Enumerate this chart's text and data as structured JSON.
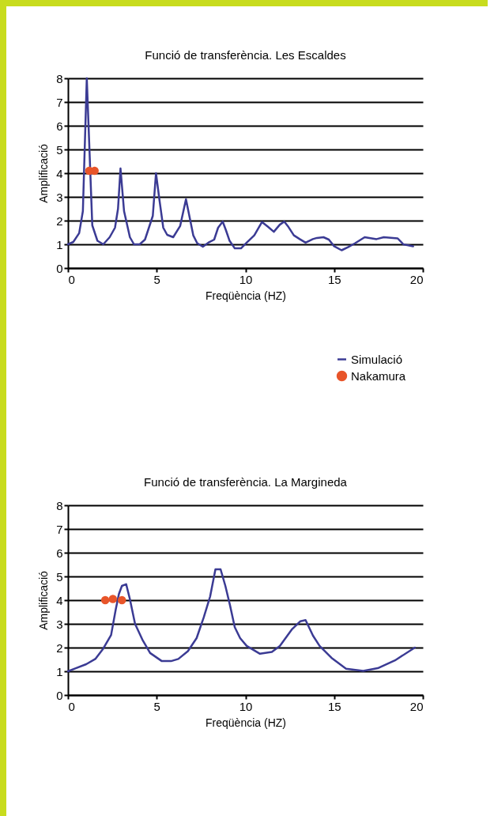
{
  "chart_data": [
    {
      "type": "line",
      "title": "Funció de transferència. Les Escaldes",
      "xlabel": "Freqüència (HZ)",
      "ylabel": "Amplificació",
      "xlim": [
        0,
        20
      ],
      "ylim": [
        0,
        8
      ],
      "xticks": [
        0,
        5,
        10,
        15,
        20
      ],
      "yticks": [
        0,
        1,
        2,
        3,
        4,
        5,
        6,
        7,
        8
      ],
      "grid": "y",
      "legend": "bottom right",
      "series": [
        {
          "name": "Simulació",
          "type": "line",
          "color": "#3b3b94",
          "x": [
            0,
            0.3,
            0.63,
            0.84,
            1.06,
            1.37,
            1.66,
            1.99,
            2.35,
            2.65,
            2.82,
            2.96,
            3.16,
            3.49,
            3.72,
            4.04,
            4.34,
            4.56,
            4.78,
            4.96,
            5.15,
            5.37,
            5.59,
            5.93,
            6.32,
            6.65,
            6.88,
            7.06,
            7.28,
            7.6,
            7.91,
            8.24,
            8.46,
            8.72,
            8.9,
            9.1,
            9.4,
            9.75,
            10.07,
            10.5,
            10.93,
            11.27,
            11.6,
            11.94,
            12.19,
            12.39,
            12.73,
            13.06,
            13.39,
            13.8,
            14.03,
            14.4,
            14.7,
            15.0,
            15.42,
            15.78,
            16.19,
            16.72,
            17.39,
            17.8,
            18.58,
            18.9,
            19.45
          ],
          "values": [
            1.0,
            1.1,
            1.47,
            2.4,
            8.0,
            1.8,
            1.15,
            1.0,
            1.3,
            1.7,
            2.5,
            4.2,
            2.4,
            1.3,
            1.0,
            1.0,
            1.2,
            1.7,
            2.2,
            4.0,
            2.9,
            1.7,
            1.4,
            1.3,
            1.77,
            2.9,
            2.05,
            1.38,
            1.05,
            0.9,
            1.07,
            1.2,
            1.7,
            1.96,
            1.6,
            1.16,
            0.83,
            0.83,
            1.07,
            1.38,
            1.94,
            1.74,
            1.53,
            1.83,
            1.96,
            1.77,
            1.38,
            1.22,
            1.07,
            1.22,
            1.27,
            1.3,
            1.2,
            0.92,
            0.75,
            0.88,
            1.05,
            1.3,
            1.22,
            1.3,
            1.25,
            1.0,
            0.92
          ]
        },
        {
          "name": "Nakamura",
          "type": "scatter",
          "color": "#e8552a",
          "marker": "circle",
          "x": [
            1.2,
            1.5
          ],
          "values": [
            4.1,
            4.1
          ]
        }
      ]
    },
    {
      "type": "line",
      "title": "Funció de transferència. La Margineda",
      "xlabel": "Freqüència (HZ)",
      "ylabel": "Amplificació",
      "xlim": [
        0,
        20
      ],
      "ylim": [
        0,
        8
      ],
      "xticks": [
        0,
        5,
        10,
        15,
        20
      ],
      "yticks": [
        0,
        1,
        2,
        3,
        4,
        5,
        6,
        7,
        8
      ],
      "grid": "y",
      "series": [
        {
          "type": "line",
          "color": "#3b3b94",
          "x": [
            0,
            0.44,
            1.03,
            1.54,
            1.99,
            2.43,
            2.69,
            2.87,
            3.04,
            3.28,
            3.49,
            3.78,
            4.19,
            4.63,
            5.29,
            5.81,
            6.22,
            6.76,
            7.25,
            7.65,
            8.01,
            8.31,
            8.6,
            8.87,
            9.12,
            9.4,
            9.7,
            10.07,
            10.82,
            11.49,
            11.94,
            12.61,
            13.1,
            13.39,
            13.81,
            14.18,
            14.85,
            15.67,
            16.64,
            17.46,
            18.43,
            19.55
          ],
          "values": [
            1.0,
            1.13,
            1.3,
            1.52,
            1.96,
            2.53,
            3.6,
            4.26,
            4.6,
            4.67,
            4.04,
            3.0,
            2.34,
            1.77,
            1.43,
            1.43,
            1.52,
            1.85,
            2.4,
            3.27,
            4.15,
            5.3,
            5.3,
            4.6,
            3.82,
            2.86,
            2.4,
            2.07,
            1.74,
            1.82,
            2.07,
            2.76,
            3.11,
            3.16,
            2.5,
            2.07,
            1.57,
            1.11,
            1.02,
            1.13,
            1.46,
            2.0
          ]
        },
        {
          "type": "scatter",
          "color": "#e8552a",
          "marker": "circle",
          "x": [
            2.1,
            2.53,
            3.04
          ],
          "values": [
            4.0,
            4.05,
            4.0
          ]
        }
      ]
    }
  ]
}
